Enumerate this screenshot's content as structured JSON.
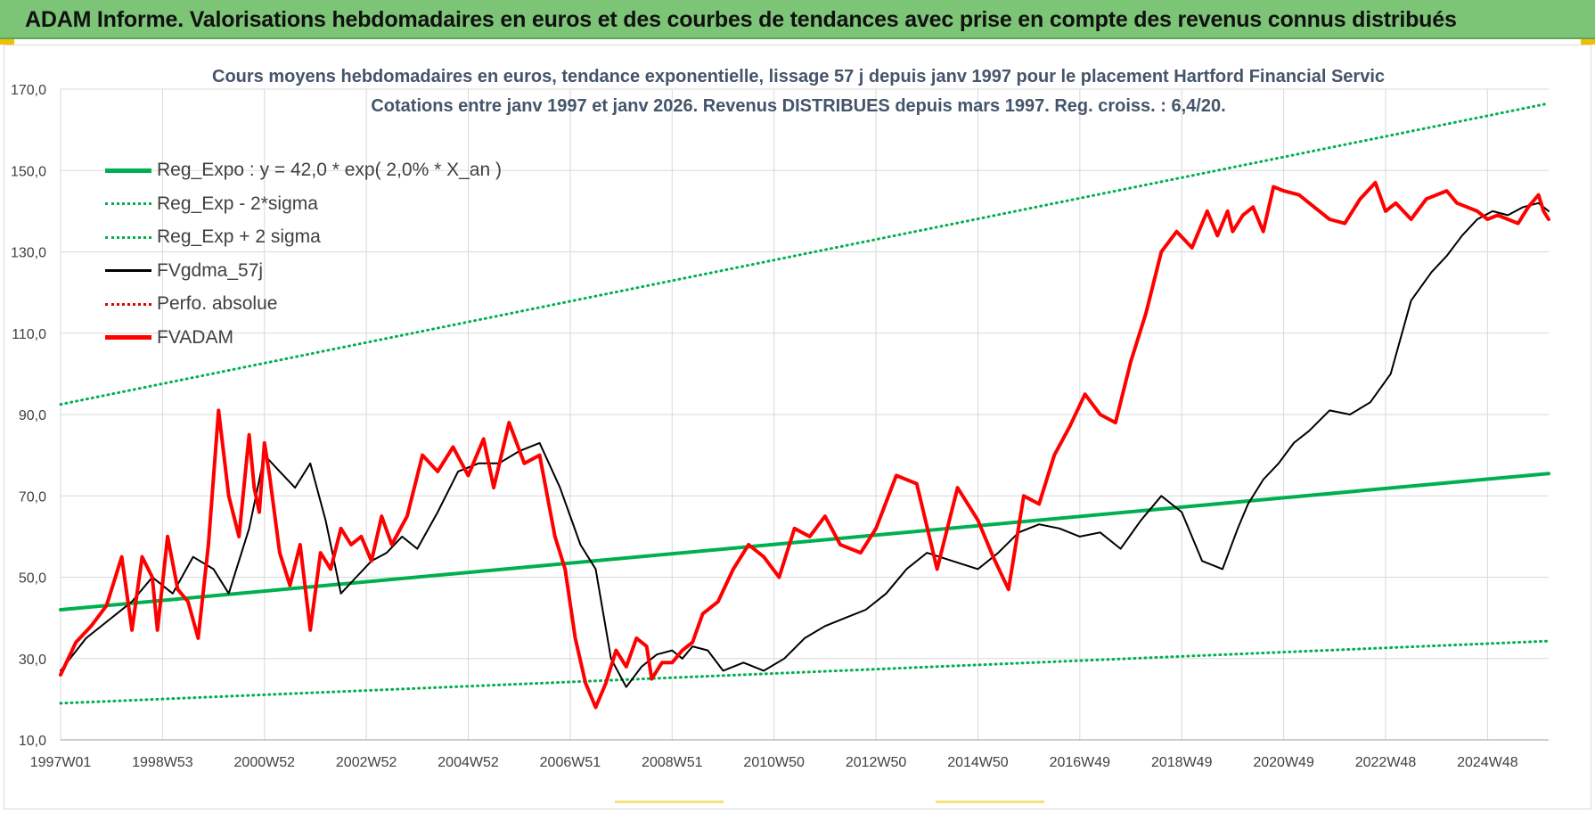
{
  "banner": {
    "title": "ADAM Informe. Valorisations hebdomadaires en euros et des courbes de tendances avec prise en compte des revenus connus distribués"
  },
  "chart_data": {
    "type": "line",
    "title": "Cours moyens hebdomadaires en euros, tendance exponentielle, lissage 57 j depuis janv 1997  pour le placement Hartford Financial Servic",
    "subtitle": "Cotations entre janv 1997 et janv 2026. Revenus DISTRIBUES depuis mars 1997.  Reg. croiss. : 6,4/20.",
    "xlabel": "",
    "ylabel": "",
    "ylim": [
      10,
      170
    ],
    "xlim": [
      1997.0,
      2026.2
    ],
    "grid": true,
    "legend_position": "top-left",
    "yticks": [
      "10,0",
      "30,0",
      "50,0",
      "70,0",
      "90,0",
      "110,0",
      "130,0",
      "150,0",
      "170,0"
    ],
    "xticks": [
      {
        "label": "1997W01",
        "x": 1997.0
      },
      {
        "label": "1998W53",
        "x": 1999.0
      },
      {
        "label": "2000W52",
        "x": 2001.0
      },
      {
        "label": "2002W52",
        "x": 2003.0
      },
      {
        "label": "2004W52",
        "x": 2005.0
      },
      {
        "label": "2006W51",
        "x": 2007.0
      },
      {
        "label": "2008W51",
        "x": 2009.0
      },
      {
        "label": "2010W50",
        "x": 2011.0
      },
      {
        "label": "2012W50",
        "x": 2013.0
      },
      {
        "label": "2014W50",
        "x": 2015.0
      },
      {
        "label": "2016W49",
        "x": 2017.0
      },
      {
        "label": "2018W49",
        "x": 2019.0
      },
      {
        "label": "2020W49",
        "x": 2021.0
      },
      {
        "label": "2022W48",
        "x": 2023.0
      },
      {
        "label": "2024W48",
        "x": 2025.0
      }
    ],
    "series": [
      {
        "name": "Reg_Expo : y = 42,0 * exp( 2,0% *  X_an )",
        "color": "#00b050",
        "style": "solid-thick",
        "x": [
          1997.0,
          2026.2
        ],
        "y": [
          42.0,
          75.5
        ]
      },
      {
        "name": "Reg_Exp - 2*sigma",
        "color": "#00b050",
        "style": "dotted",
        "x": [
          1997.0,
          2026.2
        ],
        "y": [
          19.0,
          34.3
        ]
      },
      {
        "name": "Reg_Exp + 2 sigma",
        "color": "#00b050",
        "style": "dotted",
        "x": [
          1997.0,
          2026.2
        ],
        "y": [
          92.5,
          166.5
        ]
      },
      {
        "name": "FVgdma_57j",
        "color": "#000000",
        "style": "solid",
        "x": [
          1997.0,
          1997.5,
          1998.0,
          1998.4,
          1998.8,
          1999.2,
          1999.6,
          2000.0,
          2000.3,
          2000.7,
          2001.0,
          2001.3,
          2001.6,
          2001.9,
          2002.2,
          2002.5,
          2002.8,
          2003.1,
          2003.4,
          2003.7,
          2004.0,
          2004.4,
          2004.8,
          2005.2,
          2005.6,
          2006.0,
          2006.4,
          2006.8,
          2007.2,
          2007.5,
          2007.8,
          2008.1,
          2008.4,
          2008.7,
          2009.0,
          2009.2,
          2009.4,
          2009.7,
          2010.0,
          2010.4,
          2010.8,
          2011.2,
          2011.6,
          2012.0,
          2012.4,
          2012.8,
          2013.2,
          2013.6,
          2014.0,
          2014.5,
          2015.0,
          2015.4,
          2015.8,
          2016.2,
          2016.6,
          2017.0,
          2017.4,
          2017.8,
          2018.2,
          2018.6,
          2019.0,
          2019.4,
          2019.8,
          2020.1,
          2020.3,
          2020.6,
          2020.9,
          2021.2,
          2021.5,
          2021.9,
          2022.3,
          2022.7,
          2023.1,
          2023.5,
          2023.9,
          2024.2,
          2024.5,
          2024.8,
          2025.1,
          2025.4,
          2025.7,
          2026.0,
          2026.2
        ],
        "y": [
          27,
          35,
          40,
          44,
          50,
          46,
          55,
          52,
          46,
          62,
          80,
          76,
          72,
          78,
          64,
          46,
          50,
          54,
          56,
          60,
          57,
          66,
          76,
          78,
          78,
          81,
          83,
          72,
          58,
          52,
          30,
          23,
          28,
          31,
          32,
          30,
          33,
          32,
          27,
          29,
          27,
          30,
          35,
          38,
          40,
          42,
          46,
          52,
          56,
          54,
          52,
          56,
          61,
          63,
          62,
          60,
          61,
          57,
          64,
          70,
          66,
          54,
          52,
          62,
          68,
          74,
          78,
          83,
          86,
          91,
          90,
          93,
          100,
          118,
          125,
          129,
          134,
          138,
          140,
          139,
          141,
          142,
          140
        ]
      },
      {
        "name": "Perfo. absolue",
        "color": "#e00000",
        "style": "dotted",
        "x": [],
        "y": []
      },
      {
        "name": "FVADAM",
        "color": "#ff0000",
        "style": "solid-thick",
        "x": [
          1997.0,
          1997.3,
          1997.6,
          1997.9,
          1998.2,
          1998.4,
          1998.6,
          1998.8,
          1998.9,
          1999.1,
          1999.3,
          1999.5,
          1999.7,
          1999.9,
          2000.1,
          2000.3,
          2000.5,
          2000.7,
          2000.8,
          2000.9,
          2001.0,
          2001.1,
          2001.3,
          2001.5,
          2001.7,
          2001.9,
          2002.1,
          2002.3,
          2002.5,
          2002.7,
          2002.9,
          2003.1,
          2003.3,
          2003.5,
          2003.8,
          2004.1,
          2004.4,
          2004.7,
          2005.0,
          2005.3,
          2005.5,
          2005.8,
          2006.1,
          2006.4,
          2006.7,
          2006.9,
          2007.1,
          2007.3,
          2007.5,
          2007.7,
          2007.9,
          2008.1,
          2008.3,
          2008.5,
          2008.6,
          2008.8,
          2009.0,
          2009.2,
          2009.4,
          2009.6,
          2009.9,
          2010.2,
          2010.5,
          2010.8,
          2011.1,
          2011.4,
          2011.7,
          2012.0,
          2012.3,
          2012.7,
          2013.0,
          2013.4,
          2013.8,
          2014.2,
          2014.6,
          2015.0,
          2015.3,
          2015.6,
          2015.9,
          2016.2,
          2016.5,
          2016.8,
          2017.1,
          2017.4,
          2017.7,
          2018.0,
          2018.3,
          2018.6,
          2018.9,
          2019.2,
          2019.5,
          2019.7,
          2019.9,
          2020.0,
          2020.2,
          2020.4,
          2020.6,
          2020.8,
          2021.0,
          2021.3,
          2021.6,
          2021.9,
          2022.2,
          2022.5,
          2022.8,
          2023.0,
          2023.2,
          2023.5,
          2023.8,
          2024.0,
          2024.2,
          2024.4,
          2024.6,
          2024.8,
          2025.0,
          2025.2,
          2025.4,
          2025.6,
          2025.8,
          2026.0,
          2026.1,
          2026.2
        ],
        "y": [
          26,
          34,
          38,
          43,
          55,
          37,
          55,
          50,
          37,
          60,
          47,
          44,
          35,
          58,
          91,
          70,
          60,
          85,
          72,
          66,
          83,
          75,
          56,
          48,
          58,
          37,
          56,
          52,
          62,
          58,
          60,
          54,
          65,
          58,
          65,
          80,
          76,
          82,
          75,
          84,
          72,
          88,
          78,
          80,
          60,
          52,
          35,
          24,
          18,
          24,
          32,
          28,
          35,
          33,
          25,
          29,
          29,
          32,
          34,
          41,
          44,
          52,
          58,
          55,
          50,
          62,
          60,
          65,
          58,
          56,
          62,
          75,
          73,
          52,
          72,
          64,
          55,
          47,
          70,
          68,
          80,
          87,
          95,
          90,
          88,
          103,
          115,
          130,
          135,
          131,
          140,
          134,
          140,
          135,
          139,
          141,
          135,
          146,
          145,
          144,
          141,
          138,
          137,
          143,
          147,
          140,
          142,
          138,
          143,
          144,
          145,
          142,
          141,
          140,
          138,
          139,
          138,
          137,
          141,
          144,
          140,
          138
        ]
      }
    ]
  }
}
